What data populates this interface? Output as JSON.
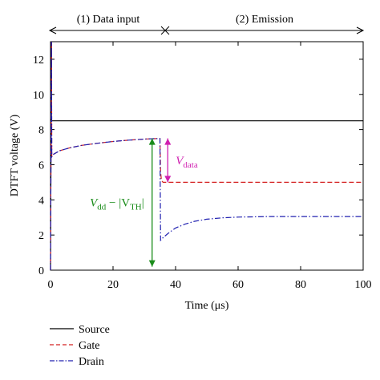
{
  "chart_data": {
    "type": "line",
    "xlabel": "Time (μs)",
    "ylabel": "DTFT voltage (V)",
    "xlim": [
      0,
      100
    ],
    "ylim": [
      0,
      13
    ],
    "xticks": [
      0,
      20,
      40,
      60,
      80,
      100
    ],
    "yticks": [
      0,
      2,
      4,
      6,
      8,
      10,
      12
    ],
    "grid": false,
    "legend_position": "bottom-center",
    "phases": [
      {
        "label": "(1) Data input",
        "x_start": 0,
        "x_end": 36
      },
      {
        "label": "(2) Emission",
        "x_start": 36,
        "x_end": 100
      }
    ],
    "series": [
      {
        "name": "Source",
        "color": "#000000",
        "style": "solid",
        "x": [
          0,
          0.3,
          0.3,
          100
        ],
        "y": [
          0,
          13,
          8.5,
          8.5
        ]
      },
      {
        "name": "Gate",
        "color": "#d42020",
        "style": "dashed",
        "x": [
          0,
          0.3,
          0.4,
          1,
          3,
          6,
          10,
          15,
          20,
          25,
          30,
          33,
          35,
          35.2,
          35.5,
          36,
          100
        ],
        "y": [
          0,
          13,
          6.45,
          6.6,
          6.8,
          6.95,
          7.1,
          7.22,
          7.32,
          7.4,
          7.46,
          7.48,
          7.49,
          5.6,
          5.1,
          5.0,
          5.0
        ]
      },
      {
        "name": "Drain",
        "color": "#2020b0",
        "style": "dashdot",
        "x": [
          0,
          0.3,
          0.4,
          1,
          3,
          6,
          10,
          15,
          20,
          25,
          30,
          33,
          35,
          35.2,
          36,
          38,
          40,
          43,
          46,
          50,
          55,
          60,
          70,
          80,
          90,
          100
        ],
        "y": [
          0,
          13,
          6.45,
          6.6,
          6.8,
          6.95,
          7.1,
          7.22,
          7.32,
          7.4,
          7.46,
          7.48,
          7.49,
          1.7,
          1.85,
          2.15,
          2.4,
          2.62,
          2.78,
          2.9,
          2.98,
          3.02,
          3.05,
          3.05,
          3.05,
          3.05
        ]
      }
    ],
    "annotations": [
      {
        "id": "vdd",
        "base": "V",
        "sub": "dd",
        "mid": " − |V",
        "sub2": "TH",
        "tail": "|",
        "color": "#1a8c1a",
        "x": 32.5,
        "y_from": 0.2,
        "y_to": 7.5
      },
      {
        "id": "vdata",
        "base": "V",
        "sub": "data",
        "color": "#d020b0",
        "x": 37.5,
        "y_from": 5.0,
        "y_to": 7.5
      }
    ]
  }
}
